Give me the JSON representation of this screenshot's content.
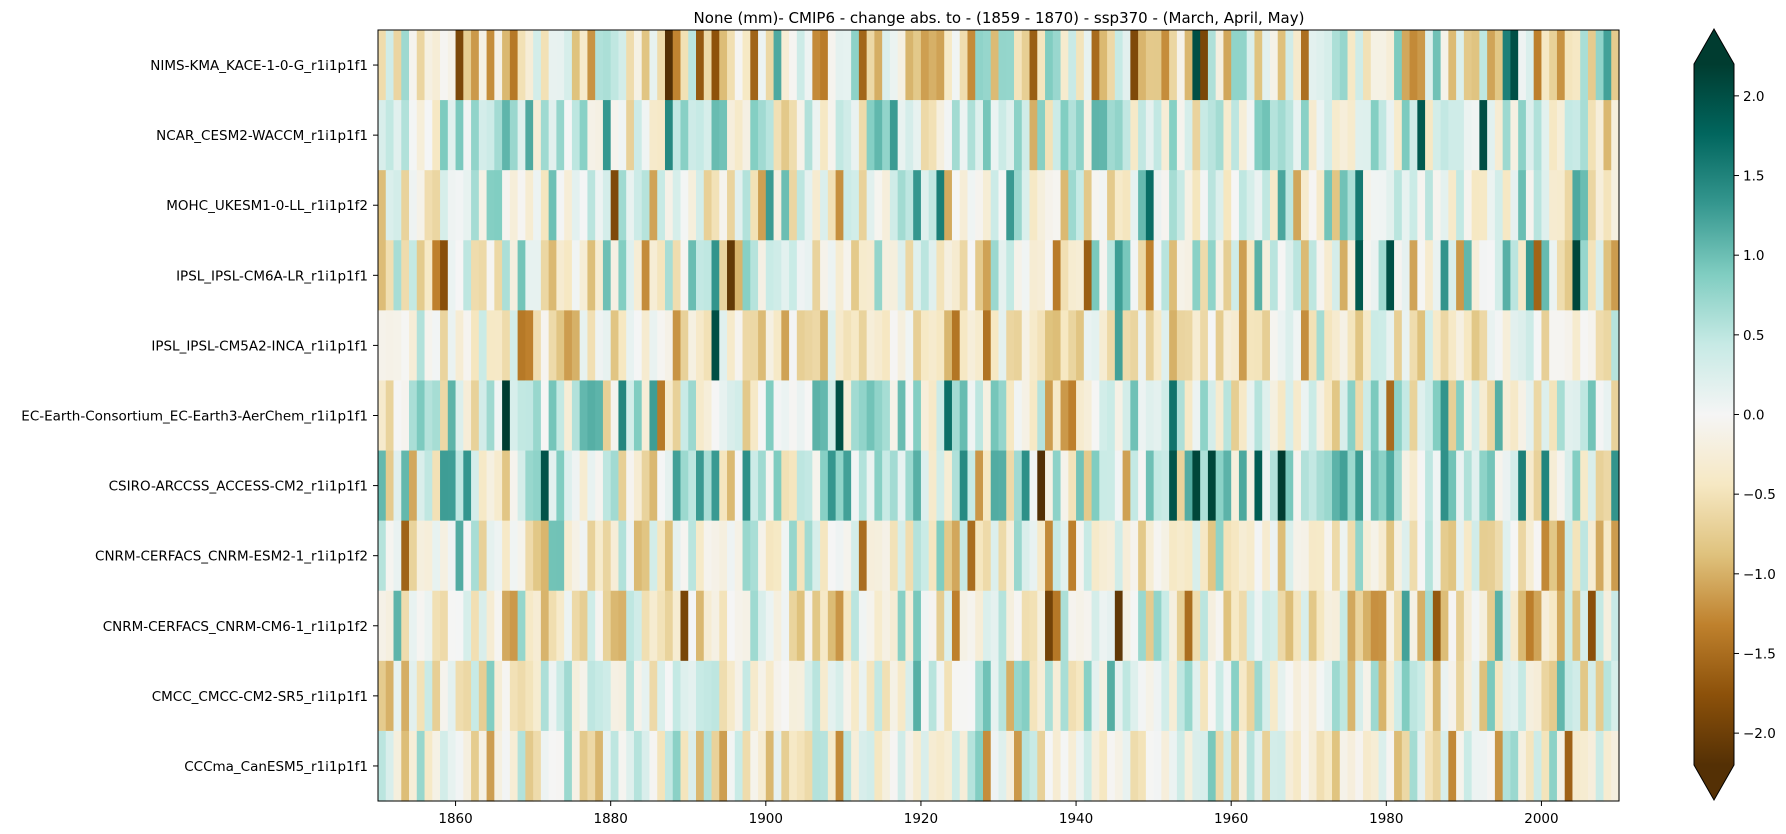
{
  "chart_data": {
    "type": "heatmap",
    "title": "None (mm)- CMIP6 - change abs. to - (1859 - 1870) - ssp370  - (March, April, May)",
    "x_start": 1850,
    "x_end": 2010,
    "xlim": [
      1850,
      2010
    ],
    "x_ticks": [
      "1860",
      "1880",
      "1900",
      "1920",
      "1940",
      "1960",
      "1980",
      "2000"
    ],
    "rows": [
      "NIMS-KMA_KACE-1-0-G_r1i1p1f1",
      "NCAR_CESM2-WACCM_r1i1p1f1",
      "MOHC_UKESM1-0-LL_r1i1p1f2",
      "IPSL_IPSL-CM6A-LR_r1i1p1f1",
      "IPSL_IPSL-CM5A2-INCA_r1i1p1f1",
      "EC-Earth-Consortium_EC-Earth3-AerChem_r1i1p1f1",
      "CSIRO-ARCCSS_ACCESS-CM2_r1i1p1f1",
      "CNRM-CERFACS_CNRM-ESM2-1_r1i1p1f2",
      "CNRM-CERFACS_CNRM-CM6-1_r1i1p1f2",
      "CMCC_CMCC-CM2-SR5_r1i1p1f1",
      "CCCma_CanESM5_r1i1p1f1"
    ],
    "row_bias": [
      -0.35,
      0.25,
      0.05,
      -0.05,
      -0.4,
      0.2,
      0.4,
      -0.25,
      -0.2,
      -0.05,
      -0.15
    ],
    "row_spread": [
      0.75,
      0.55,
      0.55,
      0.6,
      0.5,
      0.6,
      0.65,
      0.6,
      0.6,
      0.5,
      0.5
    ],
    "notable_cells": [
      {
        "row": 0,
        "year": 1921,
        "value": -1.0
      },
      {
        "row": 0,
        "year": 1922,
        "value": -1.1
      },
      {
        "row": 0,
        "year": 1955,
        "value": 2.0
      },
      {
        "row": 0,
        "year": 1996,
        "value": 2.0
      },
      {
        "row": 1,
        "year": 1984,
        "value": 1.9
      },
      {
        "row": 1,
        "year": 1992,
        "value": 2.0
      },
      {
        "row": 2,
        "year": 1949,
        "value": 1.7
      },
      {
        "row": 3,
        "year": 1976,
        "value": 1.9
      },
      {
        "row": 3,
        "year": 1980,
        "value": 2.0
      },
      {
        "row": 3,
        "year": 2004,
        "value": 2.1
      },
      {
        "row": 4,
        "year": 1893,
        "value": 2.0
      },
      {
        "row": 5,
        "year": 1866,
        "value": 2.3
      },
      {
        "row": 5,
        "year": 1909,
        "value": 2.0
      },
      {
        "row": 6,
        "year": 1955,
        "value": 2.1
      },
      {
        "row": 6,
        "year": 1957,
        "value": 2.1
      },
      {
        "row": 8,
        "year": 1945,
        "value": -2.1
      },
      {
        "row": 8,
        "year": 1937,
        "value": -1.4
      },
      {
        "row": 10,
        "year": 2003,
        "value": -1.6
      }
    ],
    "colorbar": {
      "min": -2.2,
      "max": 2.2,
      "extend": "both",
      "ticks": [
        "2.0",
        "1.5",
        "1.0",
        "0.5",
        "0.0",
        "−0.5",
        "−1.0",
        "−1.5",
        "−2.0"
      ],
      "tick_values": [
        2.0,
        1.5,
        1.0,
        0.5,
        0.0,
        -0.5,
        -1.0,
        -1.5,
        -2.0
      ]
    },
    "colormap": "BrBG",
    "colormap_stops": [
      "#543005",
      "#8c510a",
      "#bf812d",
      "#dfc27d",
      "#f6e8c3",
      "#f5f5f5",
      "#c7eae5",
      "#80cdc1",
      "#35978f",
      "#01665e",
      "#003c30"
    ]
  }
}
